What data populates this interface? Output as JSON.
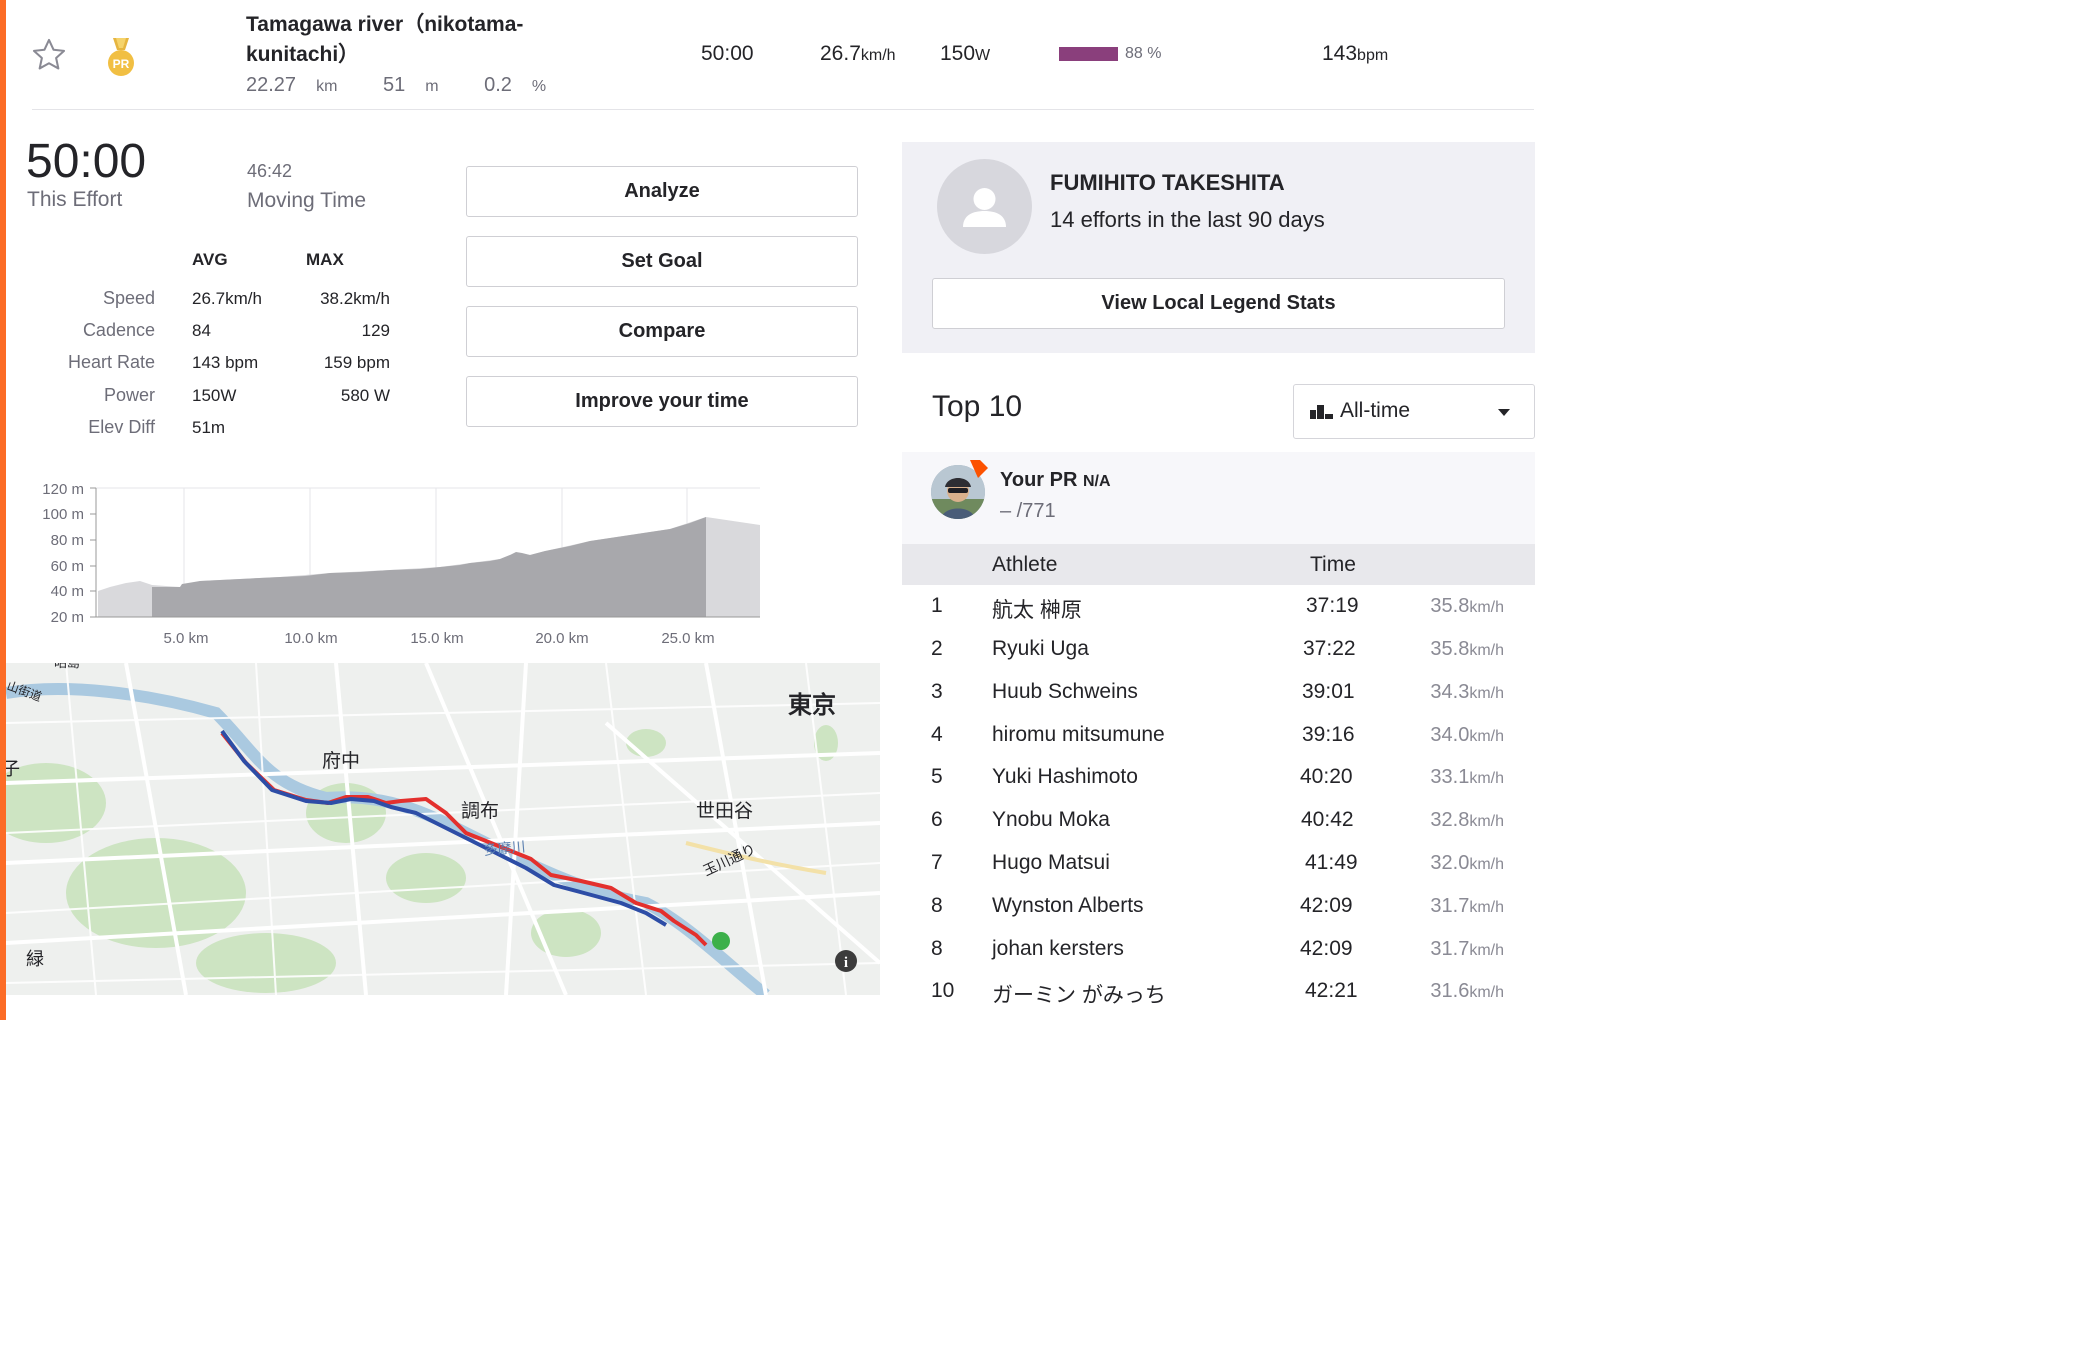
{
  "segment": {
    "name": "Tamagawa river（nikotama-kunitachi）",
    "distance_value": "22.27",
    "distance_unit": "km",
    "elevation_value": "51",
    "elevation_unit": "m",
    "grade_value": "0.2",
    "grade_unit": "%"
  },
  "header_stats": {
    "time": "50:00",
    "speed_value": "26.7",
    "speed_unit": "km/h",
    "power_value": "150",
    "power_unit": "W",
    "hr_percent_label": "88 %",
    "hr_percent": 0.88,
    "heart_rate_value": "143",
    "heart_rate_unit": "bpm",
    "colors": {
      "hr_bar": "#8a3f7c",
      "accent": "#fc5200"
    }
  },
  "effort": {
    "time": "50:00",
    "time_label": "This Effort",
    "moving_time": "46:42",
    "moving_time_label": "Moving Time"
  },
  "stats": {
    "avg_header": "AVG",
    "max_header": "MAX",
    "rows": [
      {
        "label": "Speed",
        "avg": "26.7km/h",
        "max": "38.2km/h"
      },
      {
        "label": "Cadence",
        "avg": "84",
        "max": "129"
      },
      {
        "label": "Heart Rate",
        "avg": "143 bpm",
        "max": "159 bpm"
      },
      {
        "label": "Power",
        "avg": "150W",
        "max": "580 W"
      },
      {
        "label": "Elev Diff",
        "avg": "51m",
        "max": ""
      }
    ]
  },
  "actions": {
    "analyze": "Analyze",
    "set_goal": "Set Goal",
    "compare": "Compare",
    "improve": "Improve your time"
  },
  "elevation_chart": {
    "y_ticks": [
      "120 m",
      "100 m",
      "80 m",
      "60 m",
      "40 m",
      "20 m"
    ],
    "x_ticks": [
      "5.0 km",
      "10.0 km",
      "15.0 km",
      "20.0 km",
      "25.0 km"
    ]
  },
  "map": {
    "labels": {
      "tokyo": "東京",
      "fuchu": "府中",
      "chofu": "調布",
      "setagaya": "世田谷",
      "tamagawa_dori": "玉川通り",
      "tamagawa": "多摩川",
      "midori": "緑",
      "ko": "子",
      "kaido": "山街道",
      "top_label": "昭島"
    },
    "info_icon": "info-icon",
    "colors": {
      "route_red": "#e3302d",
      "route_blue": "#2d4da6",
      "end_dot": "#3cb04a"
    }
  },
  "local_legend": {
    "name": "FUMIHITO TAKESHITA",
    "subtitle": "14 efforts in the last 90 days",
    "button": "View Local Legend Stats"
  },
  "leaderboard": {
    "title": "Top 10",
    "filter": "All-time",
    "pr_title": "Your PR",
    "pr_value": "N/A",
    "pr_rank": "– /771",
    "col_athlete": "Athlete",
    "col_time": "Time",
    "rows": [
      {
        "rank": "1",
        "name": "航太 榊原",
        "time": "37:19",
        "speed": "35.8",
        "unit": "km/h"
      },
      {
        "rank": "2",
        "name": "Ryuki Uga",
        "time": "37:22",
        "speed": "35.8",
        "unit": "km/h"
      },
      {
        "rank": "3",
        "name": "Huub Schweins",
        "time": "39:01",
        "speed": "34.3",
        "unit": "km/h"
      },
      {
        "rank": "4",
        "name": "hiromu mitsumune",
        "time": "39:16",
        "speed": "34.0",
        "unit": "km/h"
      },
      {
        "rank": "5",
        "name": "Yuki Hashimoto",
        "time": "40:20",
        "speed": "33.1",
        "unit": "km/h"
      },
      {
        "rank": "6",
        "name": "Ynobu Moka",
        "time": "40:42",
        "speed": "32.8",
        "unit": "km/h"
      },
      {
        "rank": "7",
        "name": "Hugo Matsui",
        "time": "41:49",
        "speed": "32.0",
        "unit": "km/h"
      },
      {
        "rank": "8",
        "name": "Wynston Alberts",
        "time": "42:09",
        "speed": "31.7",
        "unit": "km/h"
      },
      {
        "rank": "8",
        "name": "johan kersters",
        "time": "42:09",
        "speed": "31.7",
        "unit": "km/h"
      },
      {
        "rank": "10",
        "name": "ガーミン がみっち",
        "time": "42:21",
        "speed": "31.6",
        "unit": "km/h"
      }
    ]
  }
}
